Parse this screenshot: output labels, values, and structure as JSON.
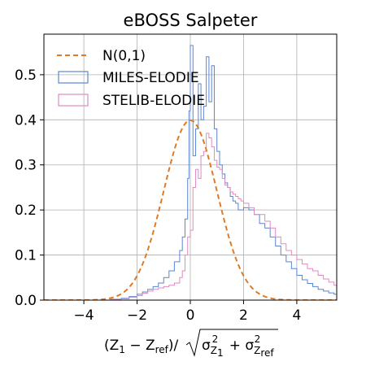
{
  "chart_data": {
    "type": "histogram",
    "title": "eBOSS Salpeter",
    "xlabel": {
      "numerator": "(Z",
      "sub1": "1",
      "minus": " − Z",
      "subref": "ref",
      "slash": ")/",
      "sigma_a": "σ",
      "sigma_a_sub": "Z",
      "sigma_a_subsub": "1",
      "sq": "2",
      "plus": " + ",
      "sigma_b": "σ",
      "sigma_b_sub": "Z",
      "sigma_b_subsub": "ref",
      "sq2": "2"
    },
    "xlim": [
      -5.5,
      5.5
    ],
    "ylim": [
      0,
      0.59
    ],
    "xticks": [
      -4,
      -2,
      0,
      2,
      4
    ],
    "xtick_labels": [
      "−4",
      "−2",
      "0",
      "2",
      "4"
    ],
    "yticks": [
      0.0,
      0.1,
      0.2,
      0.3,
      0.4,
      0.5
    ],
    "ytick_labels": [
      "0.0",
      "0.1",
      "0.2",
      "0.3",
      "0.4",
      "0.5"
    ],
    "grid": true,
    "legend_position": "upper-left",
    "series": [
      {
        "name": "N(0,1)",
        "style": "dashed-line",
        "color": "#e07b24",
        "mean": 0,
        "std": 1
      },
      {
        "name": "MILES-ELODIE",
        "style": "step",
        "color": "#5b85d6",
        "points": [
          [
            -5.5,
            0
          ],
          [
            -3.2,
            0
          ],
          [
            -3.0,
            0.002
          ],
          [
            -2.6,
            0.004
          ],
          [
            -2.3,
            0.008
          ],
          [
            -2.0,
            0.013
          ],
          [
            -1.8,
            0.018
          ],
          [
            -1.6,
            0.024
          ],
          [
            -1.4,
            0.03
          ],
          [
            -1.2,
            0.038
          ],
          [
            -1.0,
            0.05
          ],
          [
            -0.8,
            0.065
          ],
          [
            -0.6,
            0.085
          ],
          [
            -0.4,
            0.11
          ],
          [
            -0.3,
            0.14
          ],
          [
            -0.2,
            0.18
          ],
          [
            -0.1,
            0.27
          ],
          [
            -0.05,
            0.42
          ],
          [
            0.0,
            0.565
          ],
          [
            0.1,
            0.32
          ],
          [
            0.2,
            0.38
          ],
          [
            0.3,
            0.48
          ],
          [
            0.4,
            0.4
          ],
          [
            0.5,
            0.43
          ],
          [
            0.6,
            0.54
          ],
          [
            0.7,
            0.44
          ],
          [
            0.8,
            0.52
          ],
          [
            0.9,
            0.38
          ],
          [
            1.0,
            0.33
          ],
          [
            1.1,
            0.3
          ],
          [
            1.2,
            0.28
          ],
          [
            1.3,
            0.26
          ],
          [
            1.4,
            0.25
          ],
          [
            1.5,
            0.23
          ],
          [
            1.6,
            0.22
          ],
          [
            1.7,
            0.215
          ],
          [
            1.8,
            0.2
          ],
          [
            2.0,
            0.205
          ],
          [
            2.2,
            0.2
          ],
          [
            2.4,
            0.19
          ],
          [
            2.6,
            0.17
          ],
          [
            2.8,
            0.16
          ],
          [
            3.0,
            0.14
          ],
          [
            3.2,
            0.12
          ],
          [
            3.4,
            0.1
          ],
          [
            3.6,
            0.085
          ],
          [
            3.8,
            0.07
          ],
          [
            4.0,
            0.055
          ],
          [
            4.2,
            0.045
          ],
          [
            4.4,
            0.037
          ],
          [
            4.6,
            0.03
          ],
          [
            4.8,
            0.024
          ],
          [
            5.0,
            0.02
          ],
          [
            5.2,
            0.016
          ],
          [
            5.4,
            0.013
          ]
        ]
      },
      {
        "name": "STELIB-ELODIE",
        "style": "step",
        "color": "#e08ac1",
        "points": [
          [
            -5.5,
            0
          ],
          [
            -3.2,
            0
          ],
          [
            -3.0,
            0.002
          ],
          [
            -2.6,
            0.003
          ],
          [
            -2.3,
            0.006
          ],
          [
            -2.0,
            0.01
          ],
          [
            -1.8,
            0.015
          ],
          [
            -1.6,
            0.02
          ],
          [
            -1.4,
            0.024
          ],
          [
            -1.2,
            0.027
          ],
          [
            -1.0,
            0.03
          ],
          [
            -0.8,
            0.033
          ],
          [
            -0.6,
            0.038
          ],
          [
            -0.4,
            0.05
          ],
          [
            -0.3,
            0.065
          ],
          [
            -0.2,
            0.1
          ],
          [
            -0.1,
            0.14
          ],
          [
            0.0,
            0.155
          ],
          [
            0.1,
            0.25
          ],
          [
            0.2,
            0.29
          ],
          [
            0.3,
            0.27
          ],
          [
            0.4,
            0.32
          ],
          [
            0.5,
            0.33
          ],
          [
            0.6,
            0.37
          ],
          [
            0.7,
            0.36
          ],
          [
            0.8,
            0.34
          ],
          [
            0.9,
            0.31
          ],
          [
            1.0,
            0.295
          ],
          [
            1.1,
            0.29
          ],
          [
            1.2,
            0.27
          ],
          [
            1.3,
            0.255
          ],
          [
            1.4,
            0.25
          ],
          [
            1.5,
            0.24
          ],
          [
            1.6,
            0.235
          ],
          [
            1.7,
            0.23
          ],
          [
            1.8,
            0.225
          ],
          [
            1.9,
            0.22
          ],
          [
            2.0,
            0.215
          ],
          [
            2.2,
            0.205
          ],
          [
            2.4,
            0.19
          ],
          [
            2.6,
            0.19
          ],
          [
            2.8,
            0.175
          ],
          [
            3.0,
            0.16
          ],
          [
            3.2,
            0.14
          ],
          [
            3.4,
            0.125
          ],
          [
            3.6,
            0.11
          ],
          [
            3.8,
            0.1
          ],
          [
            4.0,
            0.09
          ],
          [
            4.2,
            0.08
          ],
          [
            4.4,
            0.07
          ],
          [
            4.6,
            0.065
          ],
          [
            4.8,
            0.055
          ],
          [
            5.0,
            0.047
          ],
          [
            5.2,
            0.04
          ],
          [
            5.4,
            0.033
          ]
        ]
      }
    ]
  }
}
